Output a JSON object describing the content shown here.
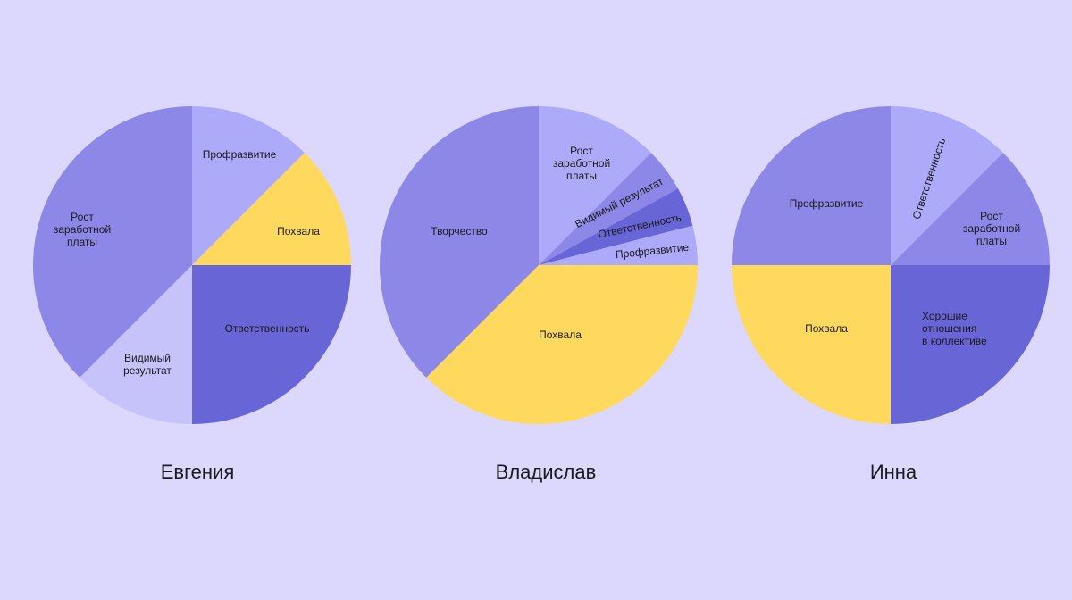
{
  "chart_data": [
    {
      "type": "pie",
      "title": "Евгения",
      "categories": [
        "Профразвитие",
        "Похвала",
        "Ответственность",
        "Видимый\nрезультат",
        "Рост\nзаработной\nплаты"
      ],
      "values": [
        12.5,
        12.5,
        25,
        12.5,
        37.5
      ],
      "colors": [
        "#aeaafa",
        "#ffd95e",
        "#6865d7",
        "#c6c3fb",
        "#8d88e8"
      ]
    },
    {
      "type": "pie",
      "title": "Владислав",
      "categories": [
        "Рост\nзаработной\nплаты",
        "Видимый результат",
        "Ответственность",
        "Профразвитие",
        "Похвала",
        "Творчество"
      ],
      "values": [
        12.5,
        4.5,
        4,
        4,
        37.5,
        37.5
      ],
      "colors": [
        "#aeaafa",
        "#8d88e8",
        "#6865d7",
        "#aeaafa",
        "#ffd95e",
        "#8d88e8"
      ]
    },
    {
      "type": "pie",
      "title": "Инна",
      "categories": [
        "Ответственность",
        "Рост\nзаработной\nплаты",
        "Хорошие\nотношения\nв коллективе",
        "Похвала",
        "Профразвитие"
      ],
      "values": [
        12.5,
        12.5,
        25,
        25,
        25
      ],
      "colors": [
        "#aeaafa",
        "#8d88e8",
        "#6865d7",
        "#ffd95e",
        "#8d88e8"
      ]
    }
  ]
}
